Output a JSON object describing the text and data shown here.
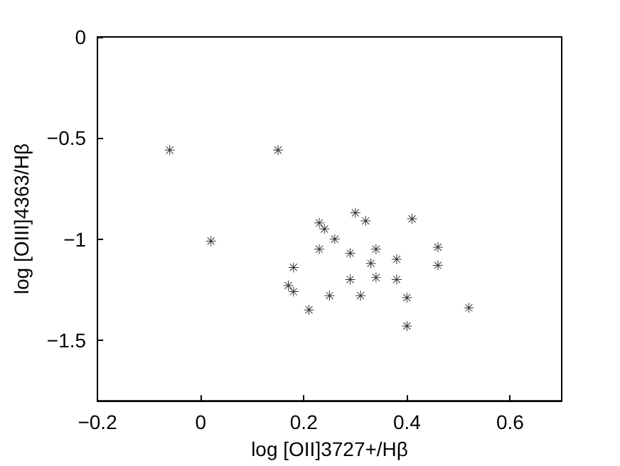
{
  "chart_data": {
    "type": "scatter",
    "xlabel": "log [OII]3727+/Hβ",
    "ylabel": "log [OIII]4363/Hβ",
    "x": [
      -0.06,
      0.15,
      0.02,
      0.23,
      0.24,
      0.23,
      0.18,
      0.17,
      0.18,
      0.21,
      0.3,
      0.32,
      0.41,
      0.26,
      0.29,
      0.34,
      0.46,
      0.38,
      0.33,
      0.46,
      0.29,
      0.34,
      0.38,
      0.25,
      0.31,
      0.4,
      0.52,
      0.4
    ],
    "values": [
      -0.56,
      -0.56,
      -1.01,
      -0.92,
      -0.95,
      -1.05,
      -1.14,
      -1.23,
      -1.26,
      -1.35,
      -0.87,
      -0.91,
      -0.9,
      -1.0,
      -1.07,
      -1.05,
      -1.04,
      -1.1,
      -1.12,
      -1.13,
      -1.2,
      -1.19,
      -1.2,
      -1.28,
      -1.28,
      -1.29,
      -1.34,
      -1.43
    ],
    "color": "#000000",
    "marker": "star",
    "grid": false,
    "xlim": [
      -0.2,
      0.7
    ],
    "xticks": [
      -0.2,
      0,
      0.2,
      0.4,
      0.6
    ],
    "ylim": [
      -1.8,
      0
    ],
    "yticks": [
      -1.5,
      -1,
      -0.5,
      0
    ]
  }
}
